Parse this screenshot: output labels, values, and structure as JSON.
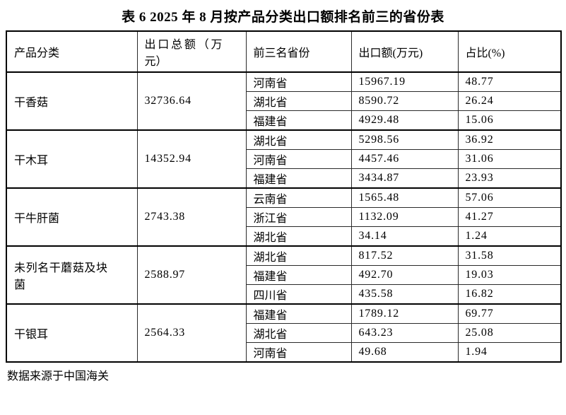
{
  "title": "表 6  2025 年 8 月按产品分类出口额排名前三的省份表",
  "source_note": "数据来源于中国海关",
  "table": {
    "headers": [
      "产品分类",
      "出口总额（万元）",
      "前三名省份",
      "出口额(万元)",
      "占比(%)"
    ],
    "groups": [
      {
        "category": "干香菇",
        "total": "32736.64",
        "rows": [
          {
            "province": "河南省",
            "value": "15967.19",
            "share": "48.77"
          },
          {
            "province": "湖北省",
            "value": "8590.72",
            "share": "26.24"
          },
          {
            "province": "福建省",
            "value": "4929.48",
            "share": "15.06"
          }
        ]
      },
      {
        "category": "干木耳",
        "total": "14352.94",
        "rows": [
          {
            "province": "湖北省",
            "value": "5298.56",
            "share": "36.92"
          },
          {
            "province": "河南省",
            "value": "4457.46",
            "share": "31.06"
          },
          {
            "province": "福建省",
            "value": "3434.87",
            "share": "23.93"
          }
        ]
      },
      {
        "category": "干牛肝菌",
        "total": "2743.38",
        "rows": [
          {
            "province": "云南省",
            "value": "1565.48",
            "share": "57.06"
          },
          {
            "province": "浙江省",
            "value": "1132.09",
            "share": "41.27"
          },
          {
            "province": "湖北省",
            "value": "34.14",
            "share": "1.24"
          }
        ]
      },
      {
        "category": "未列名干蘑菇及块菌",
        "total": "2588.97",
        "rows": [
          {
            "province": "湖北省",
            "value": "817.52",
            "share": "31.58"
          },
          {
            "province": "福建省",
            "value": "492.70",
            "share": "19.03"
          },
          {
            "province": "四川省",
            "value": "435.58",
            "share": "16.82"
          }
        ]
      },
      {
        "category": "干银耳",
        "total": "2564.33",
        "rows": [
          {
            "province": "福建省",
            "value": "1789.12",
            "share": "69.77"
          },
          {
            "province": "湖北省",
            "value": "643.23",
            "share": "25.08"
          },
          {
            "province": "河南省",
            "value": "49.68",
            "share": "1.94"
          }
        ]
      }
    ]
  }
}
